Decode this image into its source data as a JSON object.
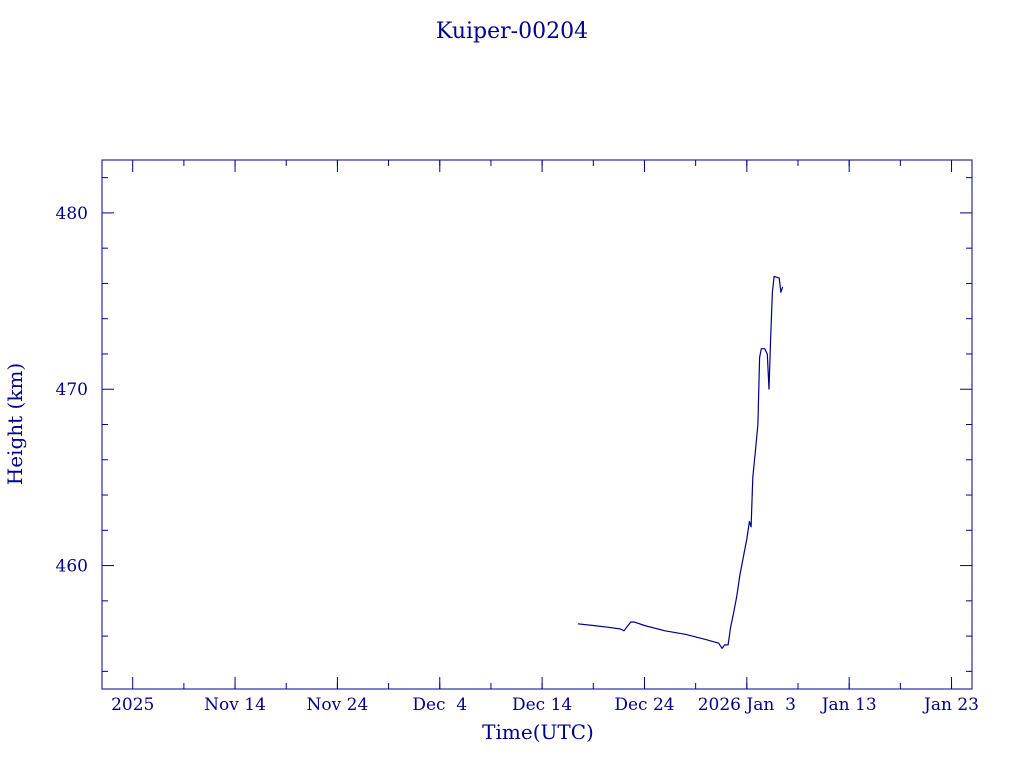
{
  "colors": {
    "ink": "#00008b",
    "background": "#ffffff"
  },
  "chart_data": {
    "type": "line",
    "title": "Kuiper-00204",
    "xlabel": "Time(UTC)",
    "ylabel": "Height (km)",
    "x_axis_type": "date",
    "xlim": [
      "2025-11-01",
      "2026-01-25"
    ],
    "ylim": [
      453.0,
      483.0
    ],
    "x_ticks": [
      {
        "date": "2025-11-04",
        "label": "2025"
      },
      {
        "date": "2025-11-14",
        "label": "Nov 14"
      },
      {
        "date": "2025-11-24",
        "label": "Nov 24"
      },
      {
        "date": "2025-12-04",
        "label": "Dec  4"
      },
      {
        "date": "2025-12-14",
        "label": "Dec 14"
      },
      {
        "date": "2025-12-24",
        "label": "Dec 24"
      },
      {
        "date": "2026-01-03",
        "label": "2026 Jan  3"
      },
      {
        "date": "2026-01-13",
        "label": "Jan 13"
      },
      {
        "date": "2026-01-23",
        "label": "Jan 23"
      }
    ],
    "y_ticks": [
      460,
      470,
      480
    ],
    "grid": false,
    "series": [
      {
        "values": [
          [
            "2025-12-17T12:00",
            456.7
          ],
          [
            "2025-12-19T00:00",
            456.6
          ],
          [
            "2025-12-20T12:00",
            456.5
          ],
          [
            "2025-12-21T16:00",
            456.4
          ],
          [
            "2025-12-22T00:00",
            456.3
          ],
          [
            "2025-12-22T06:00",
            456.5
          ],
          [
            "2025-12-22T16:00",
            456.8
          ],
          [
            "2025-12-23T00:00",
            456.8
          ],
          [
            "2025-12-24T00:00",
            456.6
          ],
          [
            "2025-12-26T00:00",
            456.3
          ],
          [
            "2025-12-28T00:00",
            456.1
          ],
          [
            "2025-12-30T00:00",
            455.8
          ],
          [
            "2025-12-31T06:00",
            455.6
          ],
          [
            "2025-12-31T14:00",
            455.3
          ],
          [
            "2025-12-31T20:00",
            455.5
          ],
          [
            "2026-01-01T04:00",
            455.5
          ],
          [
            "2026-01-01T10:00",
            456.5
          ],
          [
            "2026-01-01T16:00",
            457.2
          ],
          [
            "2026-01-02T00:00",
            458.2
          ],
          [
            "2026-01-02T08:00",
            459.5
          ],
          [
            "2026-01-02T16:00",
            460.5
          ],
          [
            "2026-01-03T00:00",
            461.5
          ],
          [
            "2026-01-03T06:00",
            462.5
          ],
          [
            "2026-01-03T10:00",
            462.2
          ],
          [
            "2026-01-03T14:00",
            465.0
          ],
          [
            "2026-01-03T20:00",
            466.5
          ],
          [
            "2026-01-04T02:00",
            468.0
          ],
          [
            "2026-01-04T06:00",
            471.8
          ],
          [
            "2026-01-04T10:00",
            472.3
          ],
          [
            "2026-01-04T18:00",
            472.3
          ],
          [
            "2026-01-05T00:00",
            472.0
          ],
          [
            "2026-01-05T04:00",
            470.0
          ],
          [
            "2026-01-05T08:00",
            473.0
          ],
          [
            "2026-01-05T12:00",
            475.5
          ],
          [
            "2026-01-05T16:00",
            476.4
          ],
          [
            "2026-01-06T04:00",
            476.3
          ],
          [
            "2026-01-06T08:00",
            475.5
          ],
          [
            "2026-01-06T12:00",
            475.8
          ]
        ]
      }
    ]
  }
}
